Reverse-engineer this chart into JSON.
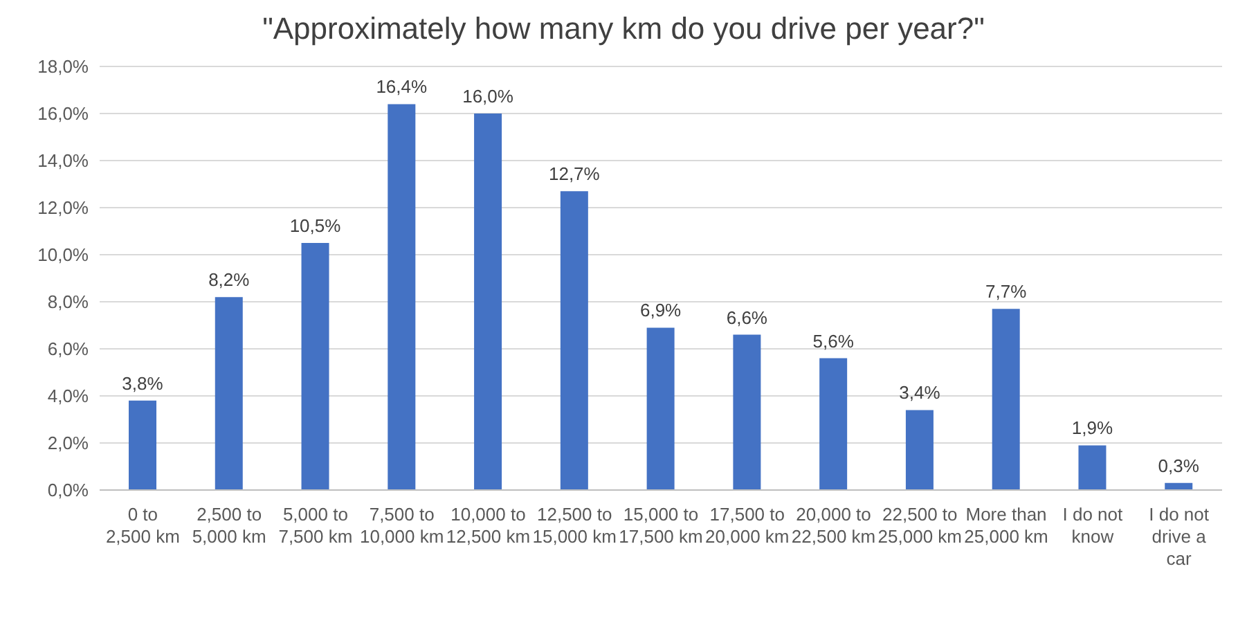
{
  "chart_data": {
    "type": "bar",
    "title": "\"Approximately how many km do you drive per year?\"",
    "categories": [
      "0 to 2,500 km",
      "2,500 to 5,000 km",
      "5,000 to 7,500 km",
      "7,500 to 10,000 km",
      "10,000 to 12,500 km",
      "12,500 to 15,000 km",
      "15,000 to 17,500 km",
      "17,500 to 20,000 km",
      "20,000 to 22,500 km",
      "22,500 to 25,000 km",
      "More than 25,000 km",
      "I do not know",
      "I do not drive a car"
    ],
    "values": [
      3.8,
      8.2,
      10.5,
      16.4,
      16.0,
      12.7,
      6.9,
      6.6,
      5.6,
      3.4,
      7.7,
      1.9,
      0.3
    ],
    "value_labels": [
      "3,8%",
      "8,2%",
      "10,5%",
      "16,4%",
      "16,0%",
      "12,7%",
      "6,9%",
      "6,6%",
      "5,6%",
      "3,4%",
      "7,7%",
      "1,9%",
      "0,3%"
    ],
    "color": "#4472c4",
    "ylim": [
      0,
      18
    ],
    "yticks": [
      {
        "value": 0,
        "label": "0,0%"
      },
      {
        "value": 2,
        "label": "2,0%"
      },
      {
        "value": 4,
        "label": "4,0%"
      },
      {
        "value": 6,
        "label": "6,0%"
      },
      {
        "value": 8,
        "label": "8,0%"
      },
      {
        "value": 10,
        "label": "10,0%"
      },
      {
        "value": 12,
        "label": "12,0%"
      },
      {
        "value": 14,
        "label": "14,0%"
      },
      {
        "value": 16,
        "label": "16,0%"
      },
      {
        "value": 18,
        "label": "18,0%"
      }
    ],
    "grid": "y"
  }
}
